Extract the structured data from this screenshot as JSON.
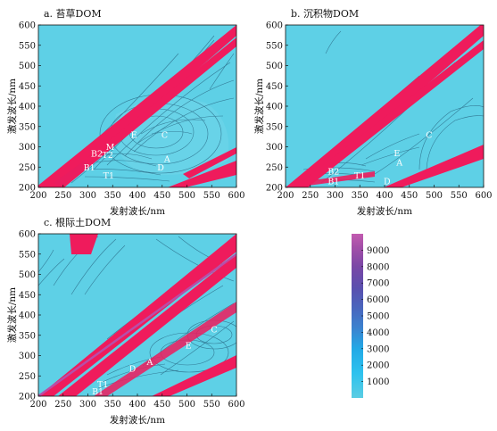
{
  "chart_data": [
    {
      "type": "heatmap",
      "subtype": "contour",
      "title": "a. 苔草DOM",
      "xlabel": "发射波长/nm",
      "ylabel": "激发波长/nm",
      "xlim": [
        200,
        600
      ],
      "ylim": [
        200,
        600
      ],
      "xticks": [
        200,
        250,
        300,
        350,
        400,
        450,
        500,
        550,
        600
      ],
      "yticks": [
        200,
        250,
        300,
        350,
        400,
        450,
        500,
        550,
        600
      ],
      "peaks": [
        {
          "label": "E",
          "x": 393,
          "y": 330
        },
        {
          "label": "C",
          "x": 455,
          "y": 330
        },
        {
          "label": "M",
          "x": 345,
          "y": 300
        },
        {
          "label": "B2",
          "x": 318,
          "y": 283
        },
        {
          "label": "T2",
          "x": 340,
          "y": 280
        },
        {
          "label": "A",
          "x": 460,
          "y": 270
        },
        {
          "label": "B1",
          "x": 303,
          "y": 250
        },
        {
          "label": "D",
          "x": 447,
          "y": 250
        },
        {
          "label": "T1",
          "x": 342,
          "y": 230
        }
      ]
    },
    {
      "type": "heatmap",
      "subtype": "contour",
      "title": "b. 沉积物DOM",
      "xlabel": "发射波长/nm",
      "ylabel": "激发波长/nm",
      "xlim": [
        200,
        600
      ],
      "ylim": [
        200,
        600
      ],
      "xticks": [
        200,
        250,
        300,
        350,
        400,
        450,
        500,
        550,
        600
      ],
      "yticks": [
        200,
        250,
        300,
        350,
        400,
        450,
        500,
        550,
        600
      ],
      "peaks": [
        {
          "label": "C",
          "x": 490,
          "y": 330
        },
        {
          "label": "E",
          "x": 425,
          "y": 285
        },
        {
          "label": "A",
          "x": 430,
          "y": 262
        },
        {
          "label": "B2",
          "x": 297,
          "y": 240
        },
        {
          "label": "T1",
          "x": 350,
          "y": 230
        },
        {
          "label": "B1",
          "x": 297,
          "y": 215
        },
        {
          "label": "D",
          "x": 405,
          "y": 215
        }
      ]
    },
    {
      "type": "heatmap",
      "subtype": "contour",
      "title": "c. 根际土DOM",
      "xlabel": "发射波长/nm",
      "ylabel": "激发波长/nm",
      "xlim": [
        200,
        600
      ],
      "ylim": [
        200,
        600
      ],
      "xticks": [
        200,
        250,
        300,
        350,
        400,
        450,
        500,
        550,
        600
      ],
      "yticks": [
        200,
        250,
        300,
        350,
        400,
        450,
        500,
        550,
        600
      ],
      "peaks": [
        {
          "label": "C",
          "x": 555,
          "y": 365
        },
        {
          "label": "E",
          "x": 503,
          "y": 325
        },
        {
          "label": "A",
          "x": 425,
          "y": 285
        },
        {
          "label": "D",
          "x": 390,
          "y": 268
        },
        {
          "label": "T1",
          "x": 330,
          "y": 230
        },
        {
          "label": "B1",
          "x": 320,
          "y": 212
        }
      ]
    }
  ],
  "colorbar": {
    "ticks": [
      1000,
      2000,
      3000,
      4000,
      5000,
      6000,
      7000,
      8000,
      9000
    ],
    "range": [
      0,
      10000
    ],
    "colors": [
      "#5bcde3",
      "#2ec2ee",
      "#22a9e6",
      "#3a84d0",
      "#4a65bd",
      "#5a4fae",
      "#6d47a6",
      "#8448a6",
      "#a44fa8",
      "#c25bb0"
    ]
  },
  "colors": {
    "background": "#5ed0e6",
    "scatter_band": "#ef1b5c",
    "contour_line": "#2c6e8a"
  }
}
